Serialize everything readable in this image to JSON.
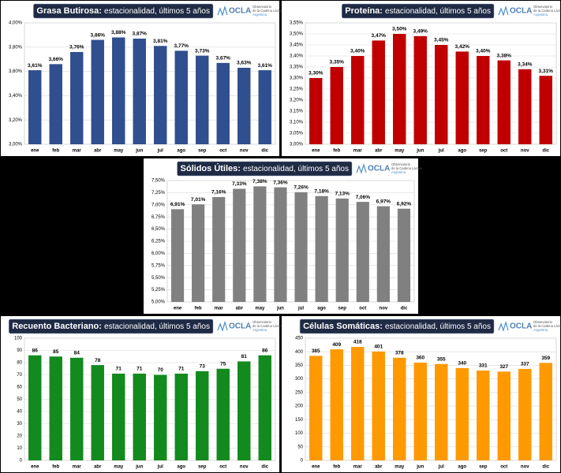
{
  "logo": {
    "name": "OCLA",
    "line1": "Observatorio",
    "line2": "de la Cadena Láctea",
    "line3": "Argentina"
  },
  "chart_data": [
    {
      "type": "bar",
      "title": "Grasa Butirosa:",
      "subtitle": "estacionalidad, últimos 5 años",
      "categories": [
        "ene",
        "feb",
        "mar",
        "abr",
        "may",
        "jun",
        "jul",
        "ago",
        "sep",
        "oct",
        "nov",
        "dic"
      ],
      "values": [
        3.61,
        3.66,
        3.76,
        3.86,
        3.88,
        3.87,
        3.81,
        3.77,
        3.73,
        3.67,
        3.63,
        3.61
      ],
      "value_labels": [
        "3,61%",
        "3,66%",
        "3,76%",
        "3,86%",
        "3,88%",
        "3,87%",
        "3,81%",
        "3,77%",
        "3,73%",
        "3,67%",
        "3,63%",
        "3,61%"
      ],
      "color": "#2f4f8f",
      "ylim": [
        3.0,
        4.0
      ],
      "grid": true,
      "yticks": [
        {
          "value": 3.0,
          "label": "3,00%"
        },
        {
          "value": 3.2,
          "label": "3,20%"
        },
        {
          "value": 3.4,
          "label": "3,40%"
        },
        {
          "value": 3.6,
          "label": "3,60%"
        },
        {
          "value": 3.8,
          "label": "3,80%"
        },
        {
          "value": 4.0,
          "label": "4,00%"
        }
      ]
    },
    {
      "type": "bar",
      "title": "Proteína:",
      "subtitle": "estacionalidad, últimos 5 años",
      "categories": [
        "ene",
        "feb",
        "mar",
        "abr",
        "may",
        "jun",
        "jul",
        "ago",
        "sep",
        "oct",
        "nov",
        "dic"
      ],
      "values": [
        3.3,
        3.35,
        3.4,
        3.47,
        3.5,
        3.49,
        3.45,
        3.42,
        3.4,
        3.38,
        3.34,
        3.31
      ],
      "value_labels": [
        "3,30%",
        "3,35%",
        "3,40%",
        "3,47%",
        "3,50%",
        "3,49%",
        "3,45%",
        "3,42%",
        "3,40%",
        "3,38%",
        "3,34%",
        "3,31%"
      ],
      "color": "#c00000",
      "ylim": [
        3.0,
        3.55
      ],
      "grid": true,
      "yticks": [
        {
          "value": 3.0,
          "label": "3,00%"
        },
        {
          "value": 3.05,
          "label": "3,05%"
        },
        {
          "value": 3.1,
          "label": "3,10%"
        },
        {
          "value": 3.15,
          "label": "3,15%"
        },
        {
          "value": 3.2,
          "label": "3,20%"
        },
        {
          "value": 3.25,
          "label": "3,25%"
        },
        {
          "value": 3.3,
          "label": "3,30%"
        },
        {
          "value": 3.35,
          "label": "3,35%"
        },
        {
          "value": 3.4,
          "label": "3,40%"
        },
        {
          "value": 3.45,
          "label": "3,45%"
        },
        {
          "value": 3.5,
          "label": "3,50%"
        },
        {
          "value": 3.55,
          "label": "3,55%"
        }
      ]
    },
    {
      "type": "bar",
      "title": "Sólidos Útiles:",
      "subtitle": "estacionalidad, últimos 5 años",
      "categories": [
        "ene",
        "feb",
        "mar",
        "abr",
        "may",
        "jun",
        "jul",
        "ago",
        "sep",
        "oct",
        "nov",
        "dic"
      ],
      "values": [
        6.91,
        7.01,
        7.16,
        7.33,
        7.38,
        7.36,
        7.26,
        7.18,
        7.13,
        7.06,
        6.97,
        6.92
      ],
      "value_labels": [
        "6,91%",
        "7,01%",
        "7,16%",
        "7,33%",
        "7,38%",
        "7,36%",
        "7,26%",
        "7,18%",
        "7,13%",
        "7,06%",
        "6,97%",
        "6,92%"
      ],
      "color": "#808080",
      "ylim": [
        5.0,
        7.5
      ],
      "grid": true,
      "yticks": [
        {
          "value": 5.0,
          "label": "5,00%"
        },
        {
          "value": 5.25,
          "label": "5,25%"
        },
        {
          "value": 5.5,
          "label": "5,50%"
        },
        {
          "value": 5.75,
          "label": "5,75%"
        },
        {
          "value": 6.0,
          "label": "6,00%"
        },
        {
          "value": 6.25,
          "label": "6,25%"
        },
        {
          "value": 6.5,
          "label": "6,50%"
        },
        {
          "value": 6.75,
          "label": "6,75%"
        },
        {
          "value": 7.0,
          "label": "7,00%"
        },
        {
          "value": 7.25,
          "label": "7,25%"
        },
        {
          "value": 7.5,
          "label": "7,50%"
        }
      ]
    },
    {
      "type": "bar",
      "title": "Recuento Bacteriano:",
      "subtitle": "estacionalidad, últimos 5 años",
      "categories": [
        "ene",
        "feb",
        "mar",
        "abr",
        "may",
        "jun",
        "jul",
        "ago",
        "sep",
        "oct",
        "nov",
        "dic"
      ],
      "values": [
        86,
        85,
        84,
        78,
        71,
        71,
        70,
        71,
        73,
        75,
        81,
        86
      ],
      "color": "#128a1e",
      "ylim": [
        0,
        100
      ],
      "grid": true,
      "yticks": [
        0,
        10,
        20,
        30,
        40,
        50,
        60,
        70,
        80,
        90,
        100
      ]
    },
    {
      "type": "bar",
      "title": "Células Somáticas:",
      "subtitle": "estacionalidad, últimos 5 años",
      "categories": [
        "ene",
        "feb",
        "mar",
        "abr",
        "may",
        "jun",
        "jul",
        "ago",
        "sep",
        "oct",
        "nov",
        "dic"
      ],
      "values": [
        385,
        409,
        418,
        401,
        378,
        360,
        355,
        340,
        331,
        327,
        337,
        359
      ],
      "color": "#ff9900",
      "ylim": [
        0,
        450
      ],
      "grid": true,
      "yticks": [
        0,
        50,
        100,
        150,
        200,
        250,
        300,
        350,
        400,
        450
      ]
    }
  ]
}
